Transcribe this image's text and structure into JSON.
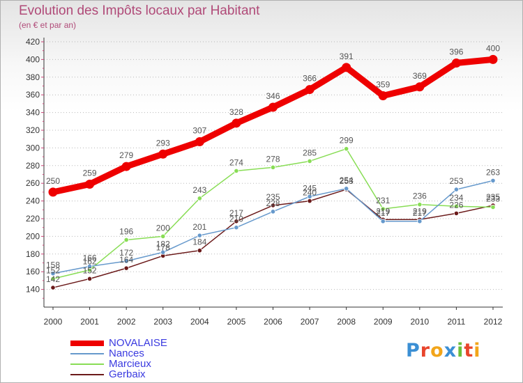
{
  "header": {
    "title": "Evolution des Impôts locaux par Habitant",
    "subtitle": "(en € et par an)"
  },
  "brand": {
    "letters": [
      "P",
      "r",
      "o",
      "x",
      "i",
      "t",
      "i"
    ],
    "colors": [
      "#3b8fd4",
      "#e8452c",
      "#f2a51a",
      "#3b8fd4",
      "#6abf3b",
      "#e8452c",
      "#f2a51a"
    ]
  },
  "colors": {
    "grid": "#b8b8b8",
    "axis": "#333333",
    "tick_label": "#333333",
    "label": "#555555",
    "title": "#b04a78",
    "legend_text": "#3a3ae0"
  },
  "chart_data": {
    "type": "line",
    "title": "Evolution des Impôts locaux par Habitant",
    "subtitle": "(en € et par an)",
    "x": [
      "2000",
      "2001",
      "2002",
      "2003",
      "2004",
      "2005",
      "2006",
      "2007",
      "2008",
      "2009",
      "2010",
      "2011",
      "2012"
    ],
    "ylim": [
      120,
      420
    ],
    "yticks": [
      140,
      160,
      180,
      200,
      220,
      240,
      260,
      280,
      300,
      320,
      340,
      360,
      380,
      400,
      420
    ],
    "grid": true,
    "legend_position": "bottom-left",
    "series": [
      {
        "name": "NOVALAISE",
        "color": "#ee0000",
        "values": [
          250,
          259,
          279,
          293,
          307,
          328,
          346,
          366,
          391,
          359,
          369,
          396,
          400
        ],
        "labels": [
          "250",
          "259",
          "279",
          "293",
          "307",
          "328",
          "346",
          "366",
          "391",
          "359",
          "369",
          "396",
          "400"
        ]
      },
      {
        "name": "Nances",
        "color": "#6699cc",
        "values": [
          158,
          166,
          172,
          182,
          201,
          210,
          228,
          245,
          254,
          217,
          217,
          253,
          263
        ],
        "labels": [
          "158",
          "166",
          "172",
          "182",
          "201",
          "210",
          "228",
          "245",
          "254",
          "217",
          "217",
          "253",
          "263"
        ]
      },
      {
        "name": "Marcieux",
        "color": "#88dd55",
        "values": [
          152,
          162,
          196,
          200,
          243,
          274,
          278,
          285,
          299,
          231,
          236,
          234,
          233
        ],
        "labels": [
          "152",
          "162",
          "196",
          "200",
          "243",
          "274",
          "278",
          "285",
          "299",
          "231",
          "236",
          "234",
          "233"
        ]
      },
      {
        "name": "Gerbaix",
        "color": "#6b1a1a",
        "values": [
          142,
          152,
          164,
          178,
          184,
          217,
          235,
          240,
          253,
          219,
          219,
          226,
          235
        ],
        "labels": [
          "142",
          "152",
          "164",
          "178",
          "184",
          "217",
          "235",
          "240",
          "253",
          "219",
          "219",
          "226",
          "235"
        ]
      }
    ]
  }
}
